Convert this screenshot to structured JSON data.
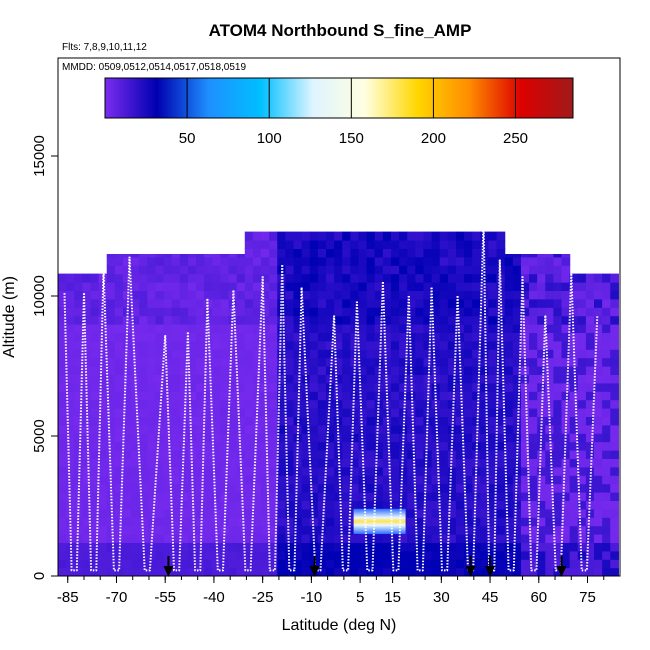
{
  "chart_data": {
    "type": "heatmap",
    "title": "ATOM4 Northbound S_fine_AMP",
    "subtitle_flights": "Flts: 7,8,9,10,11,12",
    "subtitle_dates": "MMDD: 0509,0512,0514,0517,0518,0519",
    "xlabel": "Latitude (deg N)",
    "ylabel": "Altitude (m)",
    "xlim": [
      -88,
      85
    ],
    "ylim": [
      0,
      18500
    ],
    "x_ticks": [
      -85,
      -70,
      -55,
      -40,
      -25,
      -10,
      5,
      15,
      30,
      45,
      60,
      75
    ],
    "y_ticks": [
      0,
      5000,
      10000,
      15000
    ],
    "colorbar": {
      "range": [
        0,
        285
      ],
      "ticks": [
        50,
        100,
        150,
        200,
        250
      ],
      "colors": [
        "#7b2cf0",
        "#0000b0",
        "#1e90ff",
        "#00bfff",
        "#dff4ff",
        "#ffffe0",
        "#ffd700",
        "#ff8c00",
        "#dd0000",
        "#a01a1a"
      ]
    },
    "profile_arrows": [
      -54,
      -9,
      39,
      45,
      67
    ],
    "highlight_band": {
      "lat_range": [
        3,
        19
      ],
      "alt_range": [
        1500,
        2400
      ],
      "peak_value": 200
    },
    "profile_tops": [
      [
        -86,
        10100
      ],
      [
        -80,
        10100
      ],
      [
        -74,
        11000
      ],
      [
        -66,
        11400
      ],
      [
        -55,
        8600
      ],
      [
        -48,
        8700
      ],
      [
        -42,
        9900
      ],
      [
        -34,
        10200
      ],
      [
        -25,
        10700
      ],
      [
        -19,
        11100
      ],
      [
        -13,
        10300
      ],
      [
        -3,
        9300
      ],
      [
        4,
        9800
      ],
      [
        12,
        10500
      ],
      [
        20,
        10000
      ],
      [
        27,
        10300
      ],
      [
        35,
        10000
      ],
      [
        43,
        12700
      ],
      [
        48,
        11300
      ],
      [
        55,
        10700
      ],
      [
        62,
        9300
      ],
      [
        70,
        10800
      ],
      [
        78,
        9300
      ]
    ]
  }
}
